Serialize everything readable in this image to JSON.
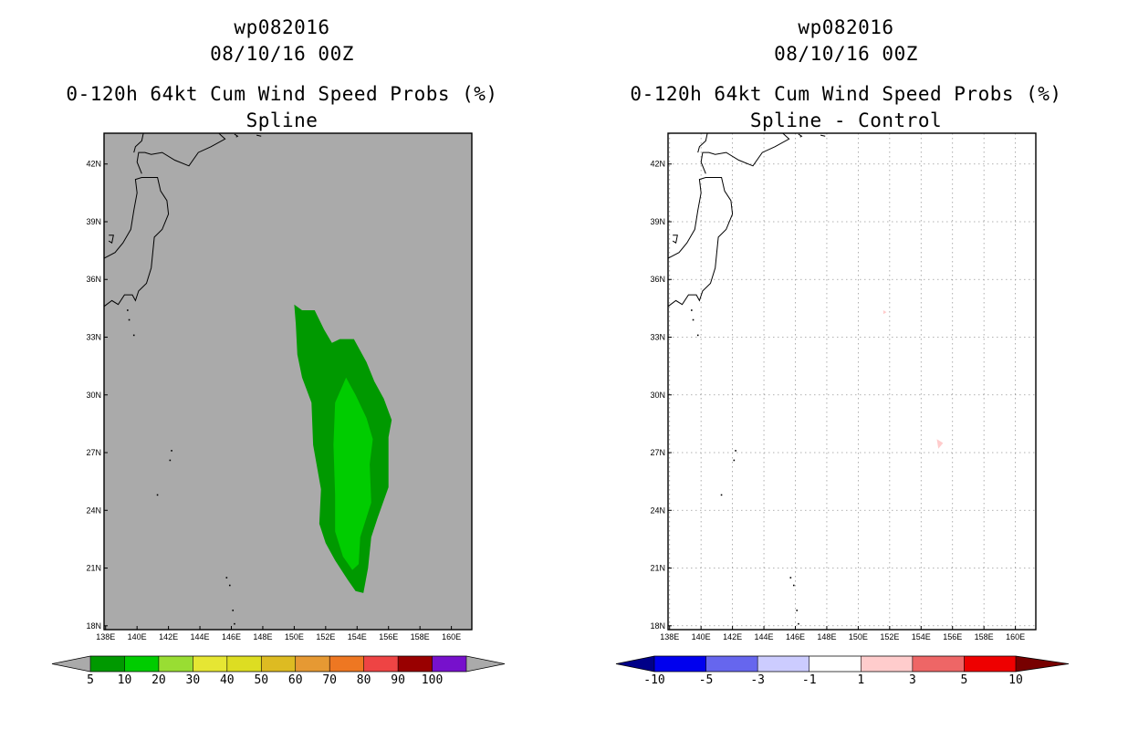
{
  "left_panel": {
    "title_line1": "wp082016",
    "title_line2": "08/10/16 00Z",
    "title_line3": "0-120h 64kt Cum Wind Speed Probs (%)",
    "title_line4": "Spline"
  },
  "right_panel": {
    "title_line1": "wp082016",
    "title_line2": "08/10/16 00Z",
    "title_line3": "0-120h 64kt Cum Wind Speed Probs (%)",
    "title_line4": "Spline - Control"
  },
  "chart_data": [
    {
      "type": "heatmap",
      "panel": "left",
      "title": "0-120h 64kt Cum Wind Speed Probs (%) Spline",
      "subtitle": "wp082016 08/10/16 00Z",
      "x_ticks": [
        "138E",
        "140E",
        "142E",
        "144E",
        "146E",
        "148E",
        "150E",
        "152E",
        "154E",
        "156E",
        "158E",
        "160E"
      ],
      "y_ticks": [
        "18N",
        "21N",
        "24N",
        "27N",
        "30N",
        "33N",
        "36N",
        "39N",
        "42N"
      ],
      "xlim_lon": [
        137.9,
        161.3
      ],
      "ylim_lat": [
        17.8,
        43.6
      ],
      "background_color": "#aaaaaa",
      "colorbar": {
        "labels": [
          "5",
          "10",
          "20",
          "30",
          "40",
          "50",
          "60",
          "70",
          "80",
          "90",
          "100"
        ],
        "colors": [
          "#009900",
          "#00cc00",
          "#99dd33",
          "#e6e633",
          "#dddd22",
          "#ddbb22",
          "#e69933",
          "#ee7722",
          "#ee4444",
          "#990000",
          "#7711cc"
        ],
        "extend_low_color": "#aaaaaa",
        "extend_high_color": "#aaaaaa"
      },
      "contours": [
        {
          "level_min": 5,
          "color": "#009900",
          "lonlat": [
            [
              150,
              34.7
            ],
            [
              150.5,
              34.4
            ],
            [
              151.3,
              34.4
            ],
            [
              151.9,
              33.4
            ],
            [
              152.4,
              32.7
            ],
            [
              152.9,
              32.9
            ],
            [
              153.8,
              32.9
            ],
            [
              154.6,
              31.7
            ],
            [
              155.1,
              30.7
            ],
            [
              155.7,
              29.8
            ],
            [
              156.2,
              28.7
            ],
            [
              156,
              27.8
            ],
            [
              156,
              25.2
            ],
            [
              155.3,
              23.6
            ],
            [
              154.9,
              22.6
            ],
            [
              154.7,
              21
            ],
            [
              154.4,
              19.7
            ],
            [
              153.9,
              19.8
            ],
            [
              153.4,
              20.4
            ],
            [
              152.6,
              21.4
            ],
            [
              152,
              22.3
            ],
            [
              151.6,
              23.3
            ],
            [
              151.7,
              25.1
            ],
            [
              151.2,
              27.4
            ],
            [
              151.1,
              29.6
            ],
            [
              150.5,
              30.9
            ],
            [
              150.2,
              32.1
            ],
            [
              150.1,
              33.7
            ]
          ]
        },
        {
          "level_min": 10,
          "color": "#00cc00",
          "lonlat": [
            [
              153.3,
              30.9
            ],
            [
              153.9,
              30
            ],
            [
              154.6,
              28.8
            ],
            [
              155,
              27.7
            ],
            [
              154.8,
              26.4
            ],
            [
              154.9,
              24.4
            ],
            [
              154.2,
              22.6
            ],
            [
              154.1,
              21.2
            ],
            [
              153.7,
              20.9
            ],
            [
              153.1,
              21.6
            ],
            [
              152.6,
              22.9
            ],
            [
              152.6,
              24.8
            ],
            [
              152.5,
              27.4
            ],
            [
              152.6,
              29.6
            ]
          ]
        }
      ]
    },
    {
      "type": "heatmap",
      "panel": "right",
      "title": "0-120h 64kt Cum Wind Speed Probs (%) Spline - Control",
      "subtitle": "wp082016 08/10/16 00Z",
      "x_ticks": [
        "138E",
        "140E",
        "142E",
        "144E",
        "146E",
        "148E",
        "150E",
        "152E",
        "154E",
        "156E",
        "158E",
        "160E"
      ],
      "y_ticks": [
        "18N",
        "21N",
        "24N",
        "27N",
        "30N",
        "33N",
        "36N",
        "39N",
        "42N"
      ],
      "xlim_lon": [
        137.9,
        161.3
      ],
      "ylim_lat": [
        17.8,
        43.6
      ],
      "background_color": "#ffffff",
      "grid": true,
      "colorbar": {
        "labels": [
          "-10",
          "-5",
          "-3",
          "-1",
          "1",
          "3",
          "5",
          "10"
        ],
        "colors": [
          "#0000ee",
          "#6666ee",
          "#ccccff",
          "#ffffff",
          "#ffcccc",
          "#ee6666",
          "#ee0000"
        ],
        "extend_low_color": "#000088",
        "extend_high_color": "#770000"
      },
      "contours": [
        {
          "level_min": 1,
          "color": "#ffcccc",
          "lonlat": [
            [
              155,
              27.7
            ],
            [
              155.4,
              27.5
            ],
            [
              155.1,
              27.2
            ]
          ]
        },
        {
          "level_min": 1,
          "color": "#ffcccc",
          "lonlat": [
            [
              151.6,
              34.4
            ],
            [
              151.8,
              34.3
            ],
            [
              151.6,
              34.2
            ]
          ]
        }
      ]
    }
  ]
}
